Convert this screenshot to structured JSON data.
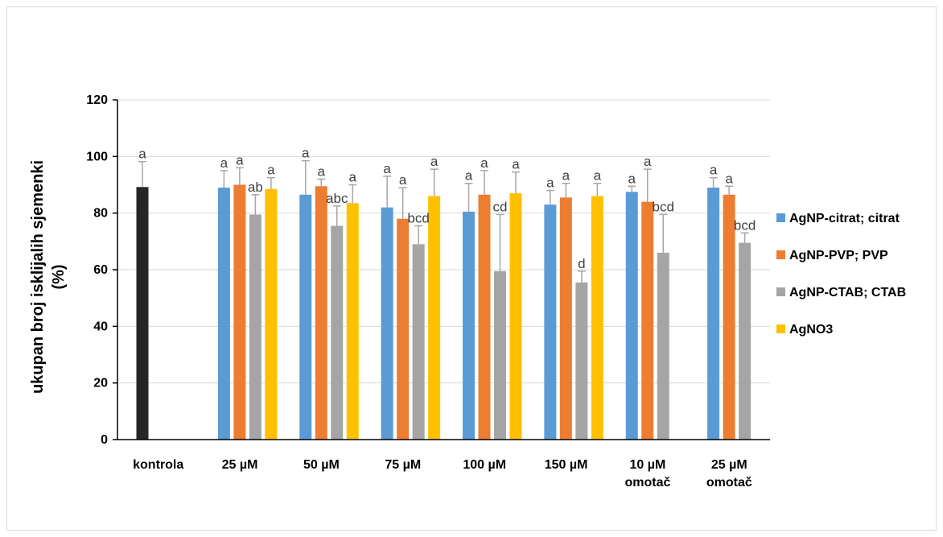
{
  "chart_data": {
    "type": "bar",
    "title": "",
    "ylabel_lines": [
      "ukupan broj isklijalih sjemenki",
      "(%)"
    ],
    "ylim": [
      0,
      120
    ],
    "yticks": [
      0,
      20,
      40,
      60,
      80,
      100,
      120
    ],
    "grid": true,
    "legend_position": "right",
    "categories": [
      [
        "kontrola"
      ],
      [
        "25 µM"
      ],
      [
        "50 µM"
      ],
      [
        "75 µM"
      ],
      [
        "100 µM"
      ],
      [
        "150 µM"
      ],
      [
        "10 µM",
        "omotač"
      ],
      [
        "25 µM",
        "omotač"
      ]
    ],
    "control": {
      "value": 89.2,
      "error": 9.0,
      "label": "a",
      "color": "#262626"
    },
    "series": [
      {
        "name": "AgNP-citrat; citrat",
        "color": "#5b9bd5",
        "values": [
          null,
          89.0,
          86.5,
          82.0,
          80.5,
          83.0,
          87.5,
          89.0
        ],
        "errors": [
          null,
          6.0,
          12.0,
          11.0,
          10.0,
          5.0,
          2.0,
          3.5
        ],
        "labels": [
          null,
          "a",
          "a",
          "a",
          "a",
          "a",
          "a",
          "a"
        ]
      },
      {
        "name": "AgNP-PVP; PVP",
        "color": "#ed7d31",
        "values": [
          null,
          90.0,
          89.5,
          78.0,
          86.5,
          85.5,
          84.0,
          86.5
        ],
        "errors": [
          null,
          6.0,
          2.5,
          11.0,
          8.5,
          5.0,
          11.5,
          3.0
        ],
        "labels": [
          null,
          "a",
          "a",
          "a",
          "a",
          "a",
          "a",
          "a"
        ]
      },
      {
        "name": "AgNP-CTAB; CTAB",
        "color": "#a5a5a5",
        "values": [
          null,
          79.5,
          75.5,
          69.0,
          59.5,
          55.5,
          66.0,
          69.5
        ],
        "errors": [
          null,
          7.0,
          7.0,
          6.5,
          20.0,
          4.0,
          13.5,
          3.5
        ],
        "labels": [
          null,
          "ab",
          "abc",
          "bcd",
          "cd",
          "d",
          "bcd",
          "bcd"
        ]
      },
      {
        "name": "AgNO3",
        "color": "#ffc000",
        "values": [
          null,
          88.5,
          83.5,
          86.0,
          87.0,
          86.0,
          null,
          null
        ],
        "errors": [
          null,
          4.0,
          6.5,
          9.5,
          7.5,
          4.5,
          null,
          null
        ],
        "labels": [
          null,
          "a",
          "a",
          "a",
          "a",
          "a",
          null,
          null
        ]
      }
    ]
  }
}
